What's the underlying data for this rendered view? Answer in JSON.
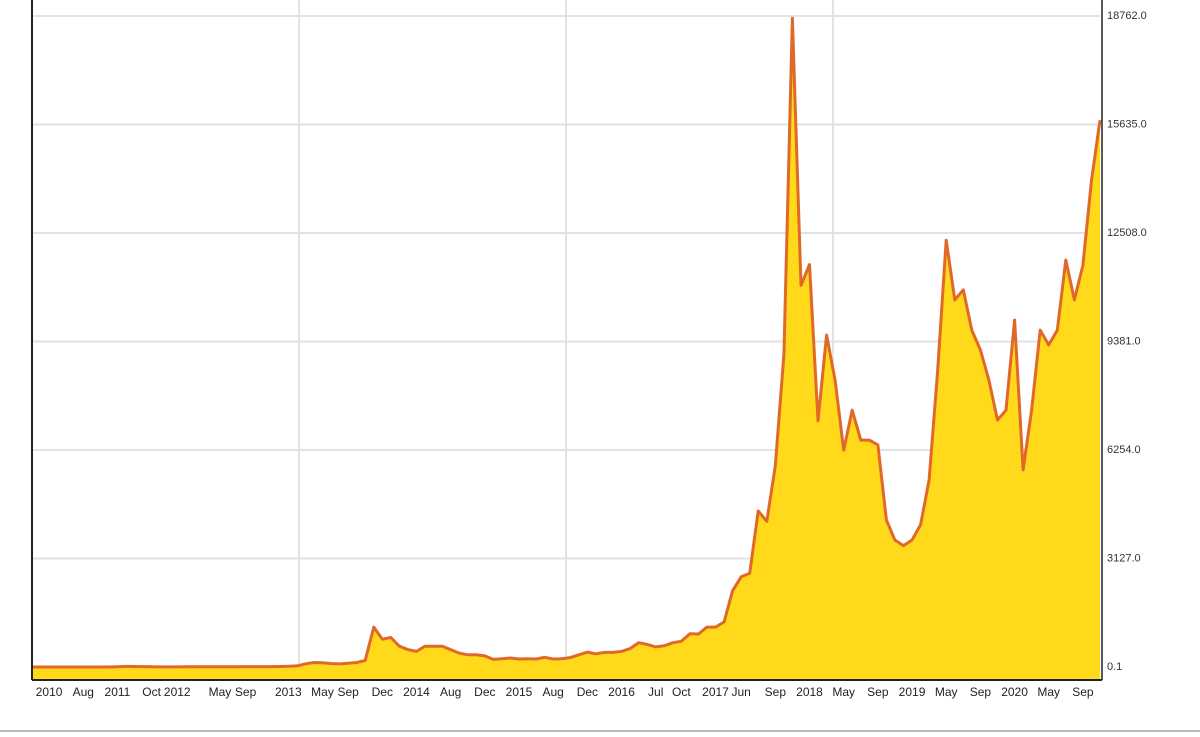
{
  "chart_data": {
    "type": "area",
    "x": [
      "2010-07",
      "2010-08",
      "2010-09",
      "2010-10",
      "2010-11",
      "2010-12",
      "2011-01",
      "2011-02",
      "2011-03",
      "2011-04",
      "2011-05",
      "2011-06",
      "2011-07",
      "2011-08",
      "2011-09",
      "2011-10",
      "2011-11",
      "2011-12",
      "2012-01",
      "2012-02",
      "2012-03",
      "2012-04",
      "2012-05",
      "2012-06",
      "2012-07",
      "2012-08",
      "2012-09",
      "2012-10",
      "2012-11",
      "2012-12",
      "2013-01",
      "2013-02",
      "2013-03",
      "2013-04",
      "2013-05",
      "2013-06",
      "2013-07",
      "2013-08",
      "2013-09",
      "2013-10",
      "2013-11",
      "2013-12",
      "2014-01",
      "2014-02",
      "2014-03",
      "2014-04",
      "2014-05",
      "2014-06",
      "2014-07",
      "2014-08",
      "2014-09",
      "2014-10",
      "2014-11",
      "2014-12",
      "2015-01",
      "2015-02",
      "2015-03",
      "2015-04",
      "2015-05",
      "2015-06",
      "2015-07",
      "2015-08",
      "2015-09",
      "2015-10",
      "2015-11",
      "2015-12",
      "2016-01",
      "2016-02",
      "2016-03",
      "2016-04",
      "2016-05",
      "2016-06",
      "2016-07",
      "2016-08",
      "2016-09",
      "2016-10",
      "2016-11",
      "2016-12",
      "2017-01",
      "2017-02",
      "2017-03",
      "2017-04",
      "2017-05",
      "2017-06",
      "2017-07",
      "2017-08",
      "2017-09",
      "2017-10",
      "2017-11",
      "2017-12",
      "2018-01",
      "2018-02",
      "2018-03",
      "2018-04",
      "2018-05",
      "2018-06",
      "2018-07",
      "2018-08",
      "2018-09",
      "2018-10",
      "2018-11",
      "2018-12",
      "2019-01",
      "2019-02",
      "2019-03",
      "2019-04",
      "2019-05",
      "2019-06",
      "2019-07",
      "2019-08",
      "2019-09",
      "2019-10",
      "2019-11",
      "2019-12",
      "2020-01",
      "2020-02",
      "2020-03",
      "2020-04",
      "2020-05",
      "2020-06",
      "2020-07",
      "2020-08",
      "2020-09",
      "2020-10",
      "2020-11",
      "2020-12"
    ],
    "values": [
      0.1,
      0.1,
      0.1,
      0.2,
      0.3,
      0.3,
      0.5,
      1,
      0.8,
      1,
      8,
      17,
      14,
      10,
      5,
      3,
      3,
      4,
      6,
      5,
      5,
      5,
      5,
      7,
      9,
      11,
      12,
      11,
      11,
      13,
      20,
      30,
      90,
      130,
      120,
      100,
      90,
      110,
      130,
      190,
      1150,
      800,
      850,
      600,
      500,
      450,
      600,
      600,
      600,
      500,
      400,
      350,
      350,
      320,
      220,
      240,
      260,
      230,
      240,
      230,
      280,
      230,
      240,
      270,
      350,
      430,
      380,
      420,
      420,
      450,
      530,
      700,
      650,
      580,
      610,
      700,
      740,
      960,
      950,
      1150,
      1150,
      1300,
      2200,
      2600,
      2700,
      4500,
      4200,
      5800,
      9000,
      18700,
      11000,
      11600,
      7100,
      9570,
      8270,
      6250,
      7400,
      6540,
      6540,
      6400,
      4240,
      3660,
      3500,
      3660,
      4100,
      5390,
      8560,
      12300,
      10580,
      10870,
      9710,
      9140,
      8270,
      7120,
      7400,
      10000,
      5680,
      7400,
      9710,
      9280,
      9710,
      11730,
      10580,
      11580,
      14030,
      15760
    ],
    "fill_color": "#ffd91a",
    "line_color": "#e0692a",
    "ylim": [
      -375,
      19080
    ],
    "yticks": [
      0.1,
      {
        "value": 3127,
        "label": "3127.0"
      },
      {
        "value": 6254,
        "label": "6254.0"
      },
      {
        "value": 9381,
        "label": "9381.0"
      },
      {
        "value": 12508,
        "label": "12508.0"
      },
      {
        "value": 15635,
        "label": "15635.0"
      },
      {
        "value": 18762,
        "label": "18762.0"
      }
    ],
    "xticks": [
      {
        "value": "2010-09",
        "label": "2010"
      },
      {
        "value": "2011-01",
        "label": "Aug"
      },
      {
        "value": "2011-05",
        "label": "2011"
      },
      {
        "value": "2011-09",
        "label": "Oct"
      },
      {
        "value": "2011-12",
        "label": "2012"
      },
      {
        "value": "2012-05",
        "label": "May"
      },
      {
        "value": "2012-08",
        "label": "Sep"
      },
      {
        "value": "2013-01",
        "label": "2013"
      },
      {
        "value": "2013-05",
        "label": "May"
      },
      {
        "value": "2013-08",
        "label": "Sep"
      },
      {
        "value": "2013-12",
        "label": "Dec"
      },
      {
        "value": "2014-04",
        "label": "2014"
      },
      {
        "value": "2014-08",
        "label": "Aug"
      },
      {
        "value": "2014-12",
        "label": "Dec"
      },
      {
        "value": "2015-04",
        "label": "2015"
      },
      {
        "value": "2015-08",
        "label": "Aug"
      },
      {
        "value": "2015-12",
        "label": "Dec"
      },
      {
        "value": "2016-04",
        "label": "2016"
      },
      {
        "value": "2016-08",
        "label": "Jul"
      },
      {
        "value": "2016-11",
        "label": "Oct"
      },
      {
        "value": "2017-03",
        "label": "2017"
      },
      {
        "value": "2017-06",
        "label": "Jun"
      },
      {
        "value": "2017-10",
        "label": "Sep"
      },
      {
        "value": "2018-02",
        "label": "2018"
      },
      {
        "value": "2018-06",
        "label": "May"
      },
      {
        "value": "2018-10",
        "label": "Sep"
      },
      {
        "value": "2019-02",
        "label": "2019"
      },
      {
        "value": "2019-06",
        "label": "May"
      },
      {
        "value": "2019-10",
        "label": "Sep"
      },
      {
        "value": "2020-02",
        "label": "2020"
      },
      {
        "value": "2020-06",
        "label": "May"
      },
      {
        "value": "2020-10",
        "label": "Sep"
      }
    ],
    "grid": true
  }
}
